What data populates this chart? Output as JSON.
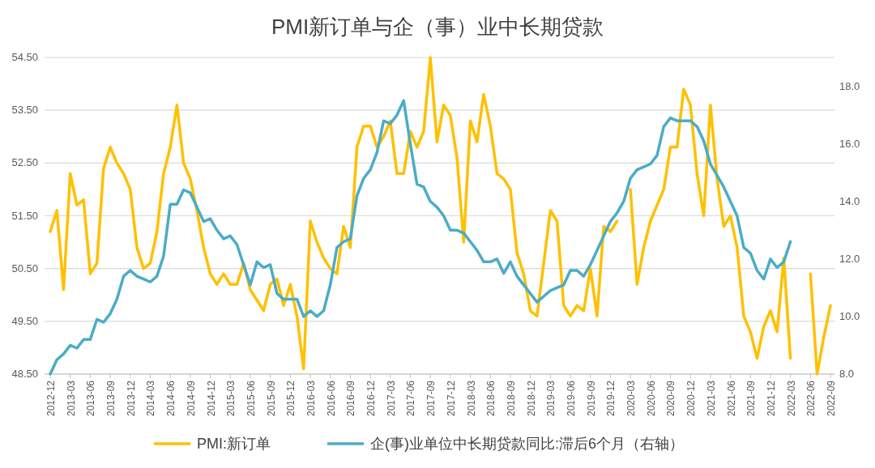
{
  "chart_data": {
    "type": "line",
    "title": "PMI新订单与企（事）业中长期贷款",
    "categories": [
      "2012-12",
      null,
      null,
      "2013-03",
      null,
      null,
      "2013-06",
      null,
      null,
      "2013-09",
      null,
      null,
      "2013-12",
      null,
      null,
      "2014-03",
      null,
      null,
      "2014-06",
      null,
      null,
      "2014-09",
      null,
      null,
      "2014-12",
      null,
      null,
      "2015-03",
      null,
      null,
      "2015-06",
      null,
      null,
      "2015-09",
      null,
      null,
      "2015-12",
      null,
      null,
      "2016-03",
      null,
      null,
      "2016-06",
      null,
      null,
      "2016-09",
      null,
      null,
      "2016-12",
      null,
      null,
      "2017-03",
      null,
      null,
      "2017-06",
      null,
      null,
      "2017-09",
      null,
      null,
      "2017-12",
      null,
      null,
      "2018-03",
      null,
      null,
      "2018-06",
      null,
      null,
      "2018-09",
      null,
      null,
      "2018-12",
      null,
      null,
      "2019-03",
      null,
      null,
      "2019-06",
      null,
      null,
      "2019-09",
      null,
      null,
      "2019-12",
      null,
      null,
      "2020-03",
      null,
      null,
      "2020-06",
      null,
      null,
      "2020-09",
      null,
      null,
      "2020-12",
      null,
      null,
      "2021-03",
      null,
      null,
      "2021-06",
      null,
      null,
      "2021-09",
      null,
      null,
      "2021-12",
      null,
      null,
      "2022-03",
      null,
      null,
      "2022-06",
      null,
      null,
      "2022-09"
    ],
    "series": [
      {
        "name": "PMI:新订单",
        "color": "#ffc000",
        "values": [
          51.2,
          51.6,
          50.1,
          52.3,
          51.7,
          51.8,
          50.4,
          50.6,
          52.4,
          52.8,
          52.5,
          52.3,
          52.0,
          50.9,
          50.5,
          50.6,
          51.2,
          52.3,
          52.8,
          53.6,
          52.5,
          52.2,
          51.6,
          50.9,
          50.4,
          50.2,
          50.4,
          50.2,
          50.2,
          50.6,
          50.1,
          49.9,
          49.7,
          50.2,
          50.3,
          49.8,
          50.2,
          49.6,
          48.6,
          51.4,
          51.0,
          50.7,
          50.5,
          50.4,
          51.3,
          50.9,
          52.8,
          53.2,
          53.2,
          52.8,
          53.0,
          53.3,
          52.3,
          52.3,
          53.1,
          52.8,
          53.1,
          54.5,
          52.9,
          53.6,
          53.4,
          52.6,
          51.0,
          53.3,
          52.9,
          53.8,
          53.2,
          52.3,
          52.2,
          52.0,
          50.8,
          50.4,
          49.7,
          49.6,
          50.6,
          51.6,
          51.4,
          49.8,
          49.6,
          49.8,
          49.7,
          50.5,
          49.6,
          51.3,
          51.2,
          51.4,
          null,
          52.0,
          50.2,
          50.9,
          51.4,
          51.7,
          52.0,
          52.8,
          52.8,
          53.9,
          53.6,
          52.3,
          51.5,
          53.6,
          52.2,
          51.3,
          51.5,
          50.9,
          49.6,
          49.3,
          48.8,
          49.4,
          49.7,
          49.3,
          50.7,
          48.8,
          null,
          null,
          50.4,
          48.5,
          49.2,
          49.8
        ]
      },
      {
        "name": "企(事)业单位中长期贷款同比:滞后6个月（右轴）",
        "color": "#4bacc6",
        "axis": "y2",
        "values": [
          8.0,
          8.5,
          8.7,
          9.0,
          8.9,
          9.2,
          9.2,
          9.9,
          9.8,
          10.1,
          10.6,
          11.4,
          11.6,
          11.4,
          11.3,
          11.2,
          11.4,
          12.1,
          13.9,
          13.9,
          14.4,
          14.3,
          13.8,
          13.3,
          13.4,
          13.0,
          12.7,
          12.8,
          12.5,
          11.8,
          11.1,
          11.9,
          11.7,
          11.8,
          10.8,
          10.6,
          10.6,
          10.6,
          10.0,
          10.2,
          10.0,
          10.2,
          11.1,
          12.4,
          12.6,
          12.7,
          14.2,
          14.8,
          15.1,
          15.7,
          16.8,
          16.7,
          17.0,
          17.5,
          16.0,
          14.6,
          14.5,
          14.0,
          13.8,
          13.5,
          13.0,
          13.0,
          12.9,
          12.6,
          12.3,
          11.9,
          11.9,
          12.0,
          11.5,
          11.9,
          11.4,
          11.1,
          10.8,
          10.5,
          10.7,
          10.9,
          11.0,
          11.1,
          11.6,
          11.6,
          11.4,
          11.8,
          12.3,
          12.8,
          13.3,
          13.6,
          14.0,
          14.8,
          15.1,
          15.2,
          15.3,
          15.6,
          16.6,
          16.9,
          16.8,
          16.8,
          16.8,
          16.6,
          16.1,
          15.3,
          14.9,
          14.5,
          14.0,
          13.5,
          12.4,
          12.2,
          11.6,
          11.3,
          12.0,
          11.7,
          11.9,
          12.6,
          null,
          null,
          null,
          null,
          null,
          null
        ]
      }
    ],
    "ylim": [
      48.5,
      54.5
    ],
    "yticks": [
      {
        "value": 48.5,
        "label": "48.50"
      },
      {
        "value": 49.5,
        "label": "49.50"
      },
      {
        "value": 50.5,
        "label": "50.50"
      },
      {
        "value": 51.5,
        "label": "51.50"
      },
      {
        "value": 52.5,
        "label": "52.50"
      },
      {
        "value": 53.5,
        "label": "53.50"
      },
      {
        "value": 54.5,
        "label": "54.50"
      }
    ],
    "y2lim": [
      8,
      19
    ],
    "y2ticks": [
      {
        "value": 8,
        "label": "8.0"
      },
      {
        "value": 10,
        "label": "10.0"
      },
      {
        "value": 12,
        "label": "12.0"
      },
      {
        "value": 14,
        "label": "14.0"
      },
      {
        "value": 16,
        "label": "16.0"
      },
      {
        "value": 18,
        "label": "18.0"
      }
    ],
    "grid": "y",
    "legend": "bottom",
    "marker": "none",
    "line_style": "solid"
  }
}
